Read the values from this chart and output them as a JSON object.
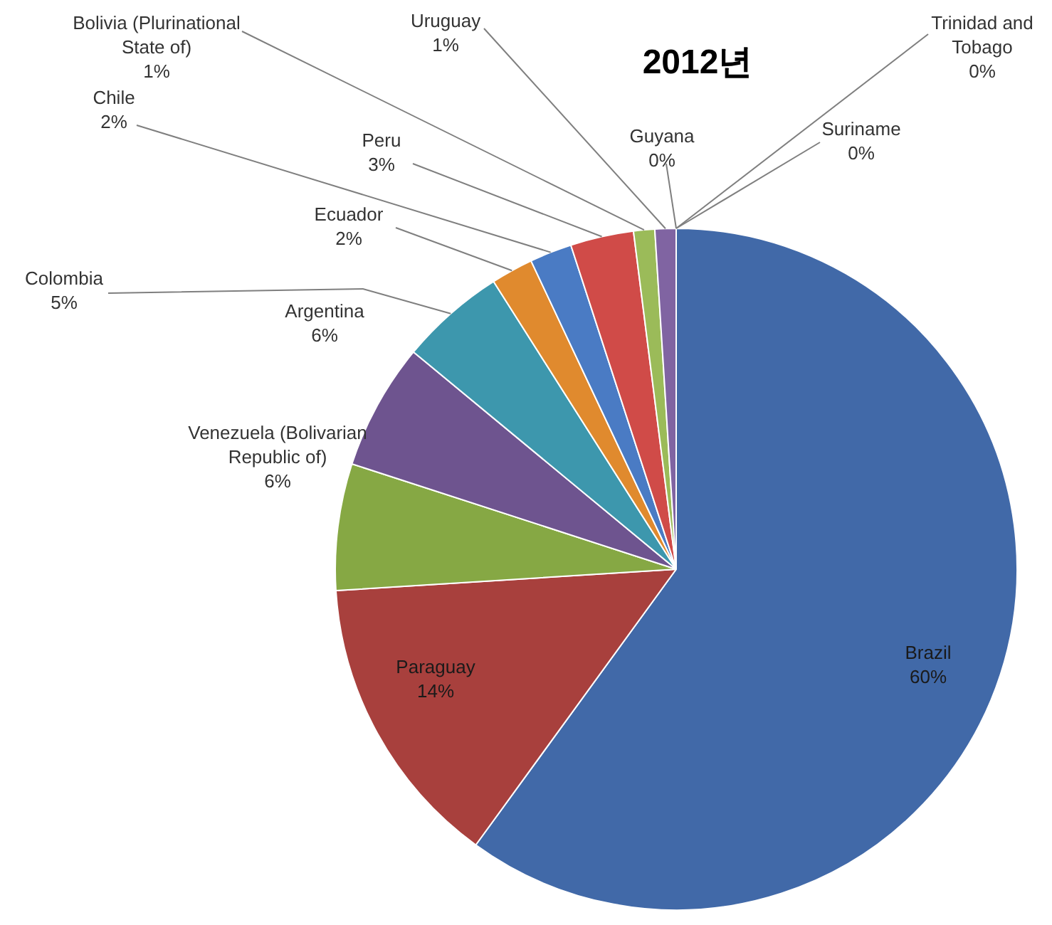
{
  "chart_data": {
    "type": "pie",
    "title": "2012년",
    "categories": [
      "Brazil",
      "Paraguay",
      "Venezuela (Bolivarian Republic of)",
      "Argentina",
      "Colombia",
      "Ecuador",
      "Chile",
      "Peru",
      "Bolivia (Plurinational State of)",
      "Uruguay",
      "Guyana",
      "Trinidad and Tobago",
      "Suriname"
    ],
    "values": [
      60,
      14,
      6,
      6,
      5,
      2,
      2,
      3,
      1,
      1,
      0,
      0,
      0
    ],
    "value_labels": [
      "60%",
      "14%",
      "6%",
      "6%",
      "5%",
      "2%",
      "2%",
      "3%",
      "1%",
      "1%",
      "0%",
      "0%",
      "0%"
    ],
    "colors": [
      "#4169a8",
      "#a8403d",
      "#86a844",
      "#6e548f",
      "#3d97ad",
      "#e08a2e",
      "#4a7bc4",
      "#d04b48",
      "#9bbb59",
      "#8064a2",
      "#4bacc6",
      "#f79646",
      "#2c4d75"
    ],
    "legend": false
  }
}
